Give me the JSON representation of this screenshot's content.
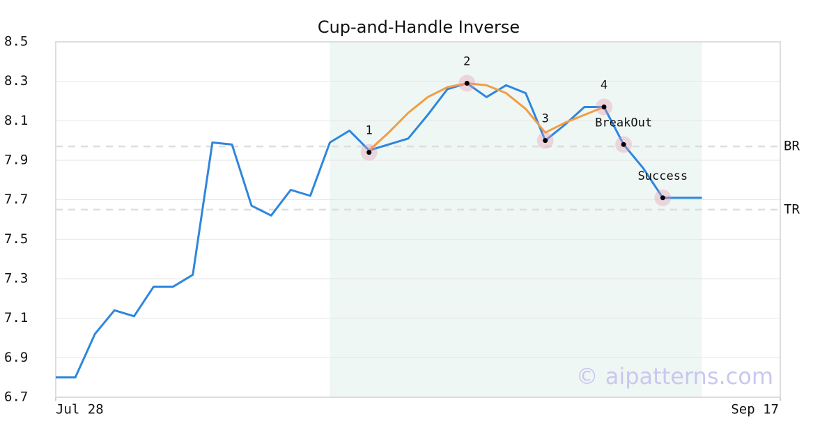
{
  "chart_data": {
    "type": "line",
    "title": "Cup-and-Handle Inverse",
    "watermark": "© aipatterns.com",
    "xlim": [
      0,
      37
    ],
    "xticks": [
      {
        "value": 0,
        "label": "Jul 28"
      },
      {
        "value": 37,
        "label": "Sep 17"
      }
    ],
    "ylim": [
      6.7,
      8.5
    ],
    "yticks": [
      6.7,
      6.9,
      7.1,
      7.3,
      7.5,
      7.7,
      7.9,
      8.1,
      8.3,
      8.5
    ],
    "grid": true,
    "shaded_region": [
      14,
      33
    ],
    "series": [
      {
        "color": "#2e86de",
        "x": [
          0,
          1,
          2,
          3,
          4,
          5,
          6,
          7,
          8,
          9,
          10,
          11,
          12,
          13,
          14,
          15,
          16,
          17,
          18,
          19,
          20,
          21,
          22,
          23,
          24,
          25,
          26,
          27,
          28,
          29,
          30,
          31,
          32,
          33
        ],
        "values": [
          6.8,
          6.8,
          7.02,
          7.14,
          7.11,
          7.26,
          7.26,
          7.32,
          7.99,
          7.98,
          7.67,
          7.62,
          7.75,
          7.72,
          7.99,
          8.05,
          7.95,
          7.98,
          8.01,
          8.13,
          8.26,
          8.29,
          8.22,
          8.28,
          8.24,
          8.0,
          8.08,
          8.17,
          8.17,
          7.98,
          7.86,
          7.71,
          7.71,
          7.71
        ]
      },
      {
        "color": "#f39c44",
        "x": [
          16,
          17,
          18,
          19,
          20,
          21,
          22,
          23,
          24,
          25,
          26,
          27,
          28
        ],
        "values": [
          7.95,
          8.04,
          8.14,
          8.22,
          8.27,
          8.29,
          8.28,
          8.24,
          8.16,
          8.04,
          8.09,
          8.13,
          8.17
        ]
      }
    ],
    "annotations": [
      {
        "label": "1",
        "x": 16,
        "y": 7.94
      },
      {
        "label": "2",
        "x": 21,
        "y": 8.29
      },
      {
        "label": "3",
        "x": 25,
        "y": 8.0
      },
      {
        "label": "4",
        "x": 28,
        "y": 8.17
      },
      {
        "label": "BreakOut",
        "x": 29,
        "y": 7.98
      },
      {
        "label": "Success",
        "x": 31,
        "y": 7.71
      }
    ],
    "hlines": [
      {
        "label": "BR",
        "y": 7.97
      },
      {
        "label": "TR",
        "y": 7.65
      }
    ]
  }
}
